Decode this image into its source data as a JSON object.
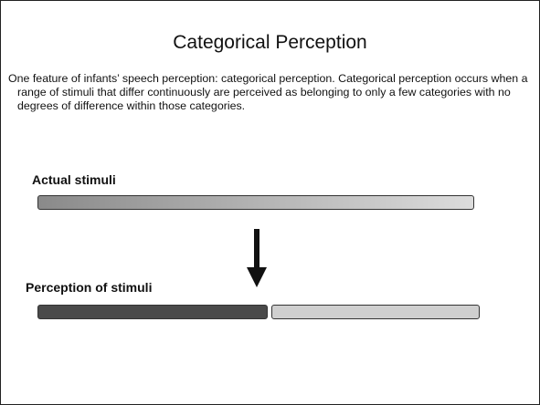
{
  "title": "Categorical Perception",
  "body": "One feature of infants’ speech perception: categorical perception. Categorical perception occurs when a range of stimuli that differ continuously are perceived as belonging to only a few categories with no degrees of difference within those categories.",
  "diagram": {
    "top_label": "Actual stimuli",
    "bottom_label": "Perception of stimuli"
  }
}
